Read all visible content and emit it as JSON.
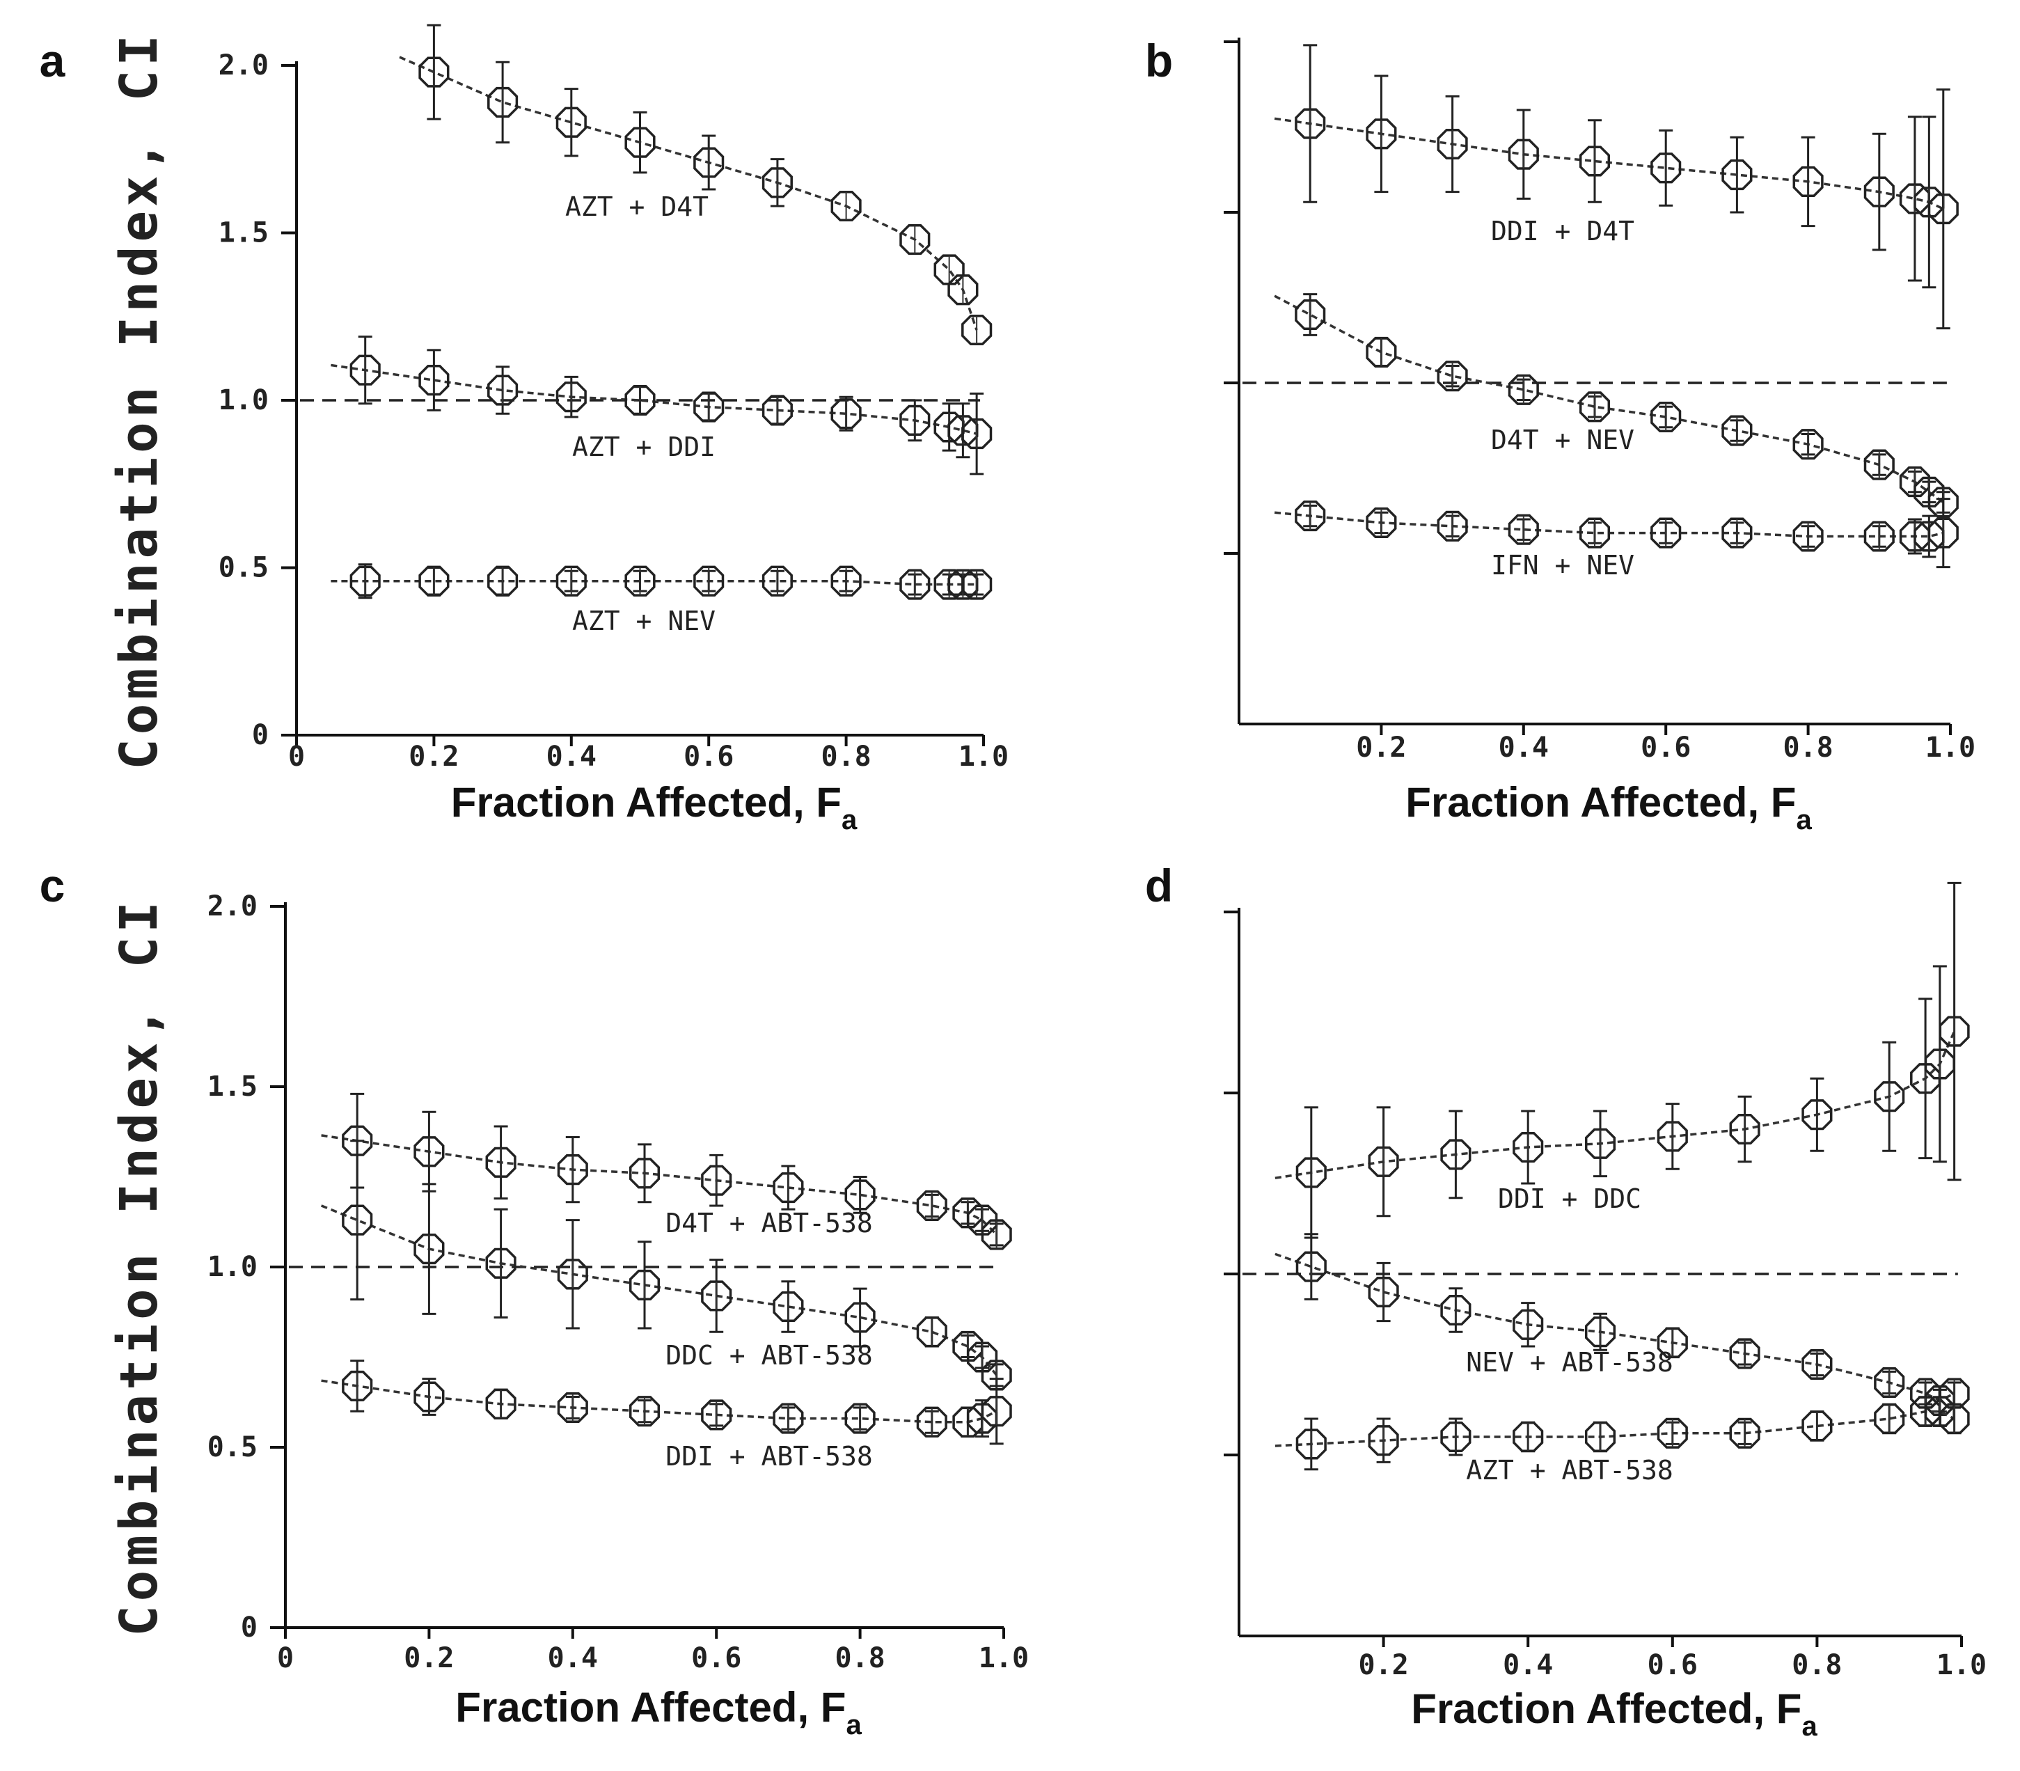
{
  "figure": {
    "x_title": "Fraction Affected, F",
    "x_title_sub": "a",
    "y_title": "Combination Index, CI"
  },
  "chart_data": [
    {
      "panel": "a",
      "type": "scatter",
      "xlabel": "Fraction Affected, Fa",
      "ylabel": "Combination Index, CI",
      "xlim": [
        0,
        1.0
      ],
      "ylim": [
        0,
        2.0
      ],
      "x_ticks": [
        "0",
        "0.2",
        "0.4",
        "0.6",
        "0.8",
        "1.0"
      ],
      "y_ticks": [
        "0",
        "0.5",
        "1.0",
        "1.5",
        "2.0"
      ],
      "reference_line": 1.0,
      "series": [
        {
          "name": "AZT + D4T",
          "x": [
            0.2,
            0.3,
            0.4,
            0.5,
            0.6,
            0.7,
            0.8,
            0.9,
            0.95,
            0.97,
            0.99
          ],
          "y": [
            1.98,
            1.89,
            1.83,
            1.77,
            1.71,
            1.65,
            1.58,
            1.48,
            1.39,
            1.33,
            1.21
          ],
          "err": [
            0.14,
            0.12,
            0.1,
            0.09,
            0.08,
            0.07,
            0.0,
            0.0,
            0.0,
            0.0,
            0.0
          ]
        },
        {
          "name": "AZT + DDI",
          "x": [
            0.1,
            0.2,
            0.3,
            0.4,
            0.5,
            0.6,
            0.7,
            0.8,
            0.9,
            0.95,
            0.97,
            0.99
          ],
          "y": [
            1.09,
            1.06,
            1.03,
            1.01,
            1.0,
            0.98,
            0.97,
            0.96,
            0.94,
            0.92,
            0.91,
            0.9
          ],
          "err": [
            0.1,
            0.09,
            0.07,
            0.06,
            0.04,
            0.04,
            0.04,
            0.05,
            0.06,
            0.07,
            0.08,
            0.12
          ]
        },
        {
          "name": "AZT + NEV",
          "x": [
            0.1,
            0.2,
            0.3,
            0.4,
            0.5,
            0.6,
            0.7,
            0.8,
            0.9,
            0.95,
            0.97,
            0.99
          ],
          "y": [
            0.46,
            0.46,
            0.46,
            0.46,
            0.46,
            0.46,
            0.46,
            0.46,
            0.45,
            0.45,
            0.45,
            0.45
          ],
          "err": [
            0.05,
            0.04,
            0.04,
            0.03,
            0.03,
            0.03,
            0.03,
            0.03,
            0.03,
            0.03,
            0.03,
            0.03
          ]
        }
      ]
    },
    {
      "panel": "b",
      "type": "scatter",
      "xlabel": "Fraction Affected, Fa",
      "ylabel": "",
      "xlim": [
        0,
        1.0
      ],
      "ylim": [
        0,
        2.0
      ],
      "x_ticks": [
        "0.2",
        "0.4",
        "0.6",
        "0.8",
        "1.0"
      ],
      "y_ticks": [],
      "reference_line": 1.0,
      "series": [
        {
          "name": "DDI + D4T",
          "x": [
            0.1,
            0.2,
            0.3,
            0.4,
            0.5,
            0.6,
            0.7,
            0.8,
            0.9,
            0.95,
            0.97,
            0.99
          ],
          "y": [
            1.76,
            1.73,
            1.7,
            1.67,
            1.65,
            1.63,
            1.61,
            1.59,
            1.56,
            1.54,
            1.53,
            1.51
          ],
          "err": [
            0.23,
            0.17,
            0.14,
            0.13,
            0.12,
            0.11,
            0.11,
            0.13,
            0.17,
            0.24,
            0.25,
            0.35
          ]
        },
        {
          "name": "D4T + NEV",
          "x": [
            0.1,
            0.2,
            0.3,
            0.4,
            0.5,
            0.6,
            0.7,
            0.8,
            0.9,
            0.95,
            0.97,
            0.99
          ],
          "y": [
            1.2,
            1.09,
            1.02,
            0.98,
            0.93,
            0.9,
            0.86,
            0.82,
            0.76,
            0.71,
            0.68,
            0.65
          ],
          "err": [
            0.06,
            0.04,
            0.03,
            0.03,
            0.03,
            0.03,
            0.03,
            0.03,
            0.03,
            0.03,
            0.03,
            0.03
          ]
        },
        {
          "name": "IFN + NEV",
          "x": [
            0.1,
            0.2,
            0.3,
            0.4,
            0.5,
            0.6,
            0.7,
            0.8,
            0.9,
            0.95,
            0.97,
            0.99
          ],
          "y": [
            0.61,
            0.59,
            0.58,
            0.57,
            0.56,
            0.56,
            0.56,
            0.55,
            0.55,
            0.55,
            0.55,
            0.56
          ],
          "err": [
            0.03,
            0.03,
            0.03,
            0.03,
            0.03,
            0.03,
            0.03,
            0.03,
            0.03,
            0.05,
            0.06,
            0.1
          ]
        }
      ]
    },
    {
      "panel": "c",
      "type": "scatter",
      "xlabel": "Fraction Affected, Fa",
      "ylabel": "Combination Index, CI",
      "xlim": [
        0,
        1.0
      ],
      "ylim": [
        0,
        2.0
      ],
      "x_ticks": [
        "0",
        "0.2",
        "0.4",
        "0.6",
        "0.8",
        "1.0"
      ],
      "y_ticks": [
        "0",
        "0.5",
        "1.0",
        "1.5",
        "2.0"
      ],
      "reference_line": 1.0,
      "series": [
        {
          "name": "D4T + ABT-538",
          "x": [
            0.1,
            0.2,
            0.3,
            0.4,
            0.5,
            0.6,
            0.7,
            0.8,
            0.9,
            0.95,
            0.97,
            0.99
          ],
          "y": [
            1.35,
            1.32,
            1.29,
            1.27,
            1.26,
            1.24,
            1.22,
            1.2,
            1.17,
            1.15,
            1.13,
            1.09
          ],
          "err": [
            0.13,
            0.11,
            0.1,
            0.09,
            0.08,
            0.07,
            0.06,
            0.05,
            0.03,
            0.03,
            0.03,
            0.03
          ]
        },
        {
          "name": "DDC + ABT-538",
          "x": [
            0.1,
            0.2,
            0.3,
            0.4,
            0.5,
            0.6,
            0.7,
            0.8,
            0.9,
            0.95,
            0.97,
            0.99
          ],
          "y": [
            1.13,
            1.05,
            1.01,
            0.98,
            0.95,
            0.92,
            0.89,
            0.86,
            0.82,
            0.78,
            0.75,
            0.7
          ],
          "err": [
            0.22,
            0.18,
            0.15,
            0.15,
            0.12,
            0.1,
            0.07,
            0.08,
            0.04,
            0.03,
            0.03,
            0.03
          ]
        },
        {
          "name": "DDI + ABT-538",
          "x": [
            0.1,
            0.2,
            0.3,
            0.4,
            0.5,
            0.6,
            0.7,
            0.8,
            0.9,
            0.95,
            0.97,
            0.99
          ],
          "y": [
            0.67,
            0.64,
            0.62,
            0.61,
            0.6,
            0.59,
            0.58,
            0.58,
            0.57,
            0.57,
            0.58,
            0.6
          ],
          "err": [
            0.07,
            0.05,
            0.04,
            0.03,
            0.03,
            0.03,
            0.03,
            0.03,
            0.03,
            0.04,
            0.05,
            0.09
          ]
        }
      ]
    },
    {
      "panel": "d",
      "type": "scatter",
      "xlabel": "Fraction Affected, Fa",
      "ylabel": "",
      "xlim": [
        0,
        1.0
      ],
      "ylim": [
        0,
        2.0
      ],
      "x_ticks": [
        "0.2",
        "0.4",
        "0.6",
        "0.8",
        "1.0"
      ],
      "y_ticks": [],
      "reference_line": 1.0,
      "series": [
        {
          "name": "DDI + DDC",
          "x": [
            0.1,
            0.2,
            0.3,
            0.4,
            0.5,
            0.6,
            0.7,
            0.8,
            0.9,
            0.95,
            0.97,
            0.99
          ],
          "y": [
            1.28,
            1.31,
            1.33,
            1.35,
            1.36,
            1.38,
            1.4,
            1.44,
            1.49,
            1.54,
            1.58,
            1.67
          ],
          "err": [
            0.18,
            0.15,
            0.12,
            0.1,
            0.09,
            0.09,
            0.09,
            0.1,
            0.15,
            0.22,
            0.27,
            0.41
          ]
        },
        {
          "name": "NEV + ABT-538",
          "x": [
            0.1,
            0.2,
            0.3,
            0.4,
            0.5,
            0.6,
            0.7,
            0.8,
            0.9,
            0.95,
            0.97,
            0.99
          ],
          "y": [
            1.02,
            0.95,
            0.9,
            0.86,
            0.84,
            0.81,
            0.78,
            0.75,
            0.7,
            0.67,
            0.65,
            0.67
          ],
          "err": [
            0.09,
            0.08,
            0.06,
            0.06,
            0.05,
            0.04,
            0.03,
            0.03,
            0.03,
            0.03,
            0.03,
            0.03
          ]
        },
        {
          "name": "AZT + ABT-538",
          "x": [
            0.1,
            0.2,
            0.3,
            0.4,
            0.5,
            0.6,
            0.7,
            0.8,
            0.9,
            0.95,
            0.97,
            0.99
          ],
          "y": [
            0.53,
            0.54,
            0.55,
            0.55,
            0.55,
            0.56,
            0.56,
            0.58,
            0.6,
            0.62,
            0.62,
            0.6
          ],
          "err": [
            0.07,
            0.06,
            0.05,
            0.04,
            0.04,
            0.03,
            0.03,
            0.04,
            0.04,
            0.04,
            0.04,
            0.04
          ]
        }
      ]
    }
  ]
}
